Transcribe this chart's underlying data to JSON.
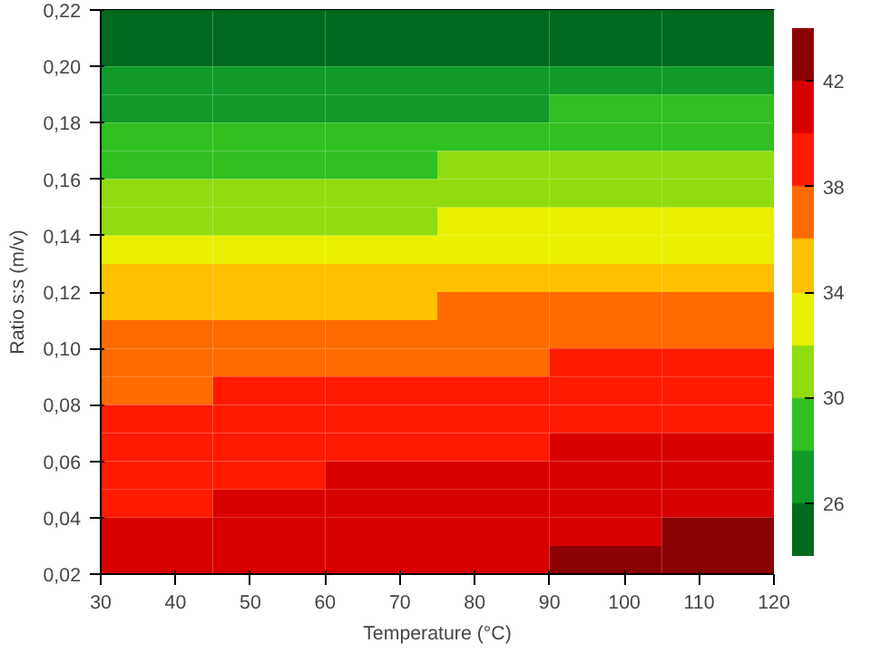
{
  "chart_data": {
    "type": "heatmap",
    "xlabel": "Temperature (°C)",
    "ylabel": "Ratio s:s (m/v)",
    "x": [
      37.5,
      52.5,
      67.5,
      82.5,
      97.5,
      112.5
    ],
    "y": [
      0.215,
      0.205,
      0.195,
      0.185,
      0.175,
      0.165,
      0.155,
      0.145,
      0.135,
      0.125,
      0.115,
      0.105,
      0.095,
      0.085,
      0.075,
      0.065,
      0.055,
      0.045,
      0.035,
      0.025
    ],
    "cells": [
      [
        24.5,
        24.6,
        24.6,
        24.7,
        24.7,
        24.8
      ],
      [
        25.5,
        25.6,
        25.7,
        25.7,
        25.8,
        25.9
      ],
      [
        26.5,
        26.6,
        26.7,
        26.8,
        26.9,
        27.0
      ],
      [
        27.5,
        27.7,
        27.8,
        27.8,
        28.0,
        28.1
      ],
      [
        28.6,
        28.7,
        28.8,
        28.9,
        29.0,
        29.1
      ],
      [
        29.6,
        29.7,
        29.8,
        30.0,
        30.1,
        30.2
      ],
      [
        30.6,
        30.7,
        30.9,
        31.0,
        31.2,
        31.3
      ],
      [
        31.6,
        31.8,
        31.9,
        32.1,
        32.3,
        32.4
      ],
      [
        32.8,
        33.0,
        33.2,
        33.3,
        33.5,
        33.7
      ],
      [
        34.1,
        34.3,
        34.5,
        34.7,
        34.9,
        35.1
      ],
      [
        35.3,
        35.5,
        35.7,
        36.0,
        36.2,
        36.4
      ],
      [
        36.3,
        36.6,
        36.8,
        37.0,
        37.3,
        37.5
      ],
      [
        37.1,
        37.4,
        37.6,
        37.9,
        38.1,
        38.4
      ],
      [
        37.8,
        38.1,
        38.4,
        38.6,
        38.9,
        39.2
      ],
      [
        38.4,
        38.7,
        39.0,
        39.3,
        39.6,
        39.9
      ],
      [
        38.9,
        39.3,
        39.6,
        39.8,
        40.2,
        40.5
      ],
      [
        39.4,
        39.7,
        40.0,
        40.4,
        40.7,
        41.0
      ],
      [
        39.7,
        40.1,
        40.4,
        40.8,
        41.2,
        41.5
      ],
      [
        40.0,
        40.4,
        40.9,
        41.3,
        41.7,
        42.1
      ],
      [
        40.2,
        40.7,
        41.2,
        41.6,
        42.1,
        42.6
      ]
    ],
    "colors": [
      "#006a1e",
      "#109a28",
      "#30c020",
      "#90dc10",
      "#e8f000",
      "#ffc000",
      "#ff6a00",
      "#ff1a00",
      "#d80000",
      "#8b0000"
    ],
    "clim": [
      24,
      44
    ],
    "cticks": [
      26,
      30,
      34,
      38,
      42
    ],
    "xlim": [
      30,
      120
    ],
    "xticks": [
      30,
      40,
      50,
      60,
      70,
      80,
      90,
      100,
      110,
      120
    ],
    "ylim": [
      0.02,
      0.22
    ],
    "yticks": [
      {
        "value": 0.02,
        "label": "0,02"
      },
      {
        "value": 0.04,
        "label": "0,04"
      },
      {
        "value": 0.06,
        "label": "0,06"
      },
      {
        "value": 0.08,
        "label": "0,08"
      },
      {
        "value": 0.1,
        "label": "0,10"
      },
      {
        "value": 0.12,
        "label": "0,12"
      },
      {
        "value": 0.14,
        "label": "0,14"
      },
      {
        "value": 0.16,
        "label": "0,16"
      },
      {
        "value": 0.18,
        "label": "0,18"
      },
      {
        "value": 0.2,
        "label": "0,20"
      },
      {
        "value": 0.22,
        "label": "0,22"
      }
    ]
  }
}
